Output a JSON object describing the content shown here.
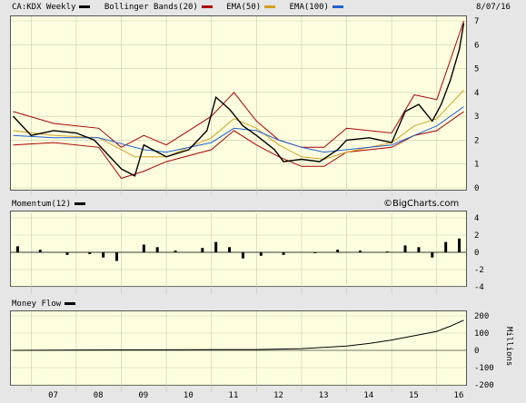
{
  "top_legend": {
    "symbol": "CA:KDX Weekly",
    "bbands": "Bollinger Bands(20)",
    "ema50": "EMA(50)",
    "ema100": "EMA(100)",
    "date": "8/07/16"
  },
  "momentum_label": "Momentum(12)",
  "moneyflow_label": "Money Flow",
  "watermark": "©BigCharts.com",
  "colors": {
    "price": "#000000",
    "bbands": "#aa0000",
    "ema50": "#d4a020",
    "ema100": "#2060d0",
    "bg": "#ffffe0"
  },
  "chart_data": [
    {
      "type": "line",
      "title": "CA:KDX Weekly",
      "x_ticks": [
        "07",
        "08",
        "09",
        "10",
        "11",
        "12",
        "13",
        "14",
        "15",
        "16"
      ],
      "y_ticks": [
        0,
        1,
        2,
        3,
        4,
        5,
        6,
        7
      ],
      "ylim": [
        0,
        7
      ],
      "series": [
        {
          "name": "CA:KDX Weekly",
          "x": [
            2006.6,
            2007.0,
            2007.5,
            2008.0,
            2008.4,
            2008.8,
            2009.0,
            2009.3,
            2009.5,
            2010.0,
            2010.5,
            2010.9,
            2011.1,
            2011.4,
            2011.7,
            2012.0,
            2012.4,
            2012.6,
            2013.0,
            2013.4,
            2013.8,
            2014.0,
            2014.5,
            2015.0,
            2015.3,
            2015.6,
            2015.9,
            2016.1,
            2016.3,
            2016.5,
            2016.6
          ],
          "values": [
            3.0,
            2.2,
            2.4,
            2.3,
            2.0,
            1.2,
            0.8,
            0.5,
            1.8,
            1.3,
            1.6,
            2.4,
            3.8,
            3.3,
            2.6,
            2.2,
            1.6,
            1.1,
            1.2,
            1.1,
            1.6,
            2.0,
            2.1,
            1.9,
            3.2,
            3.5,
            2.8,
            3.5,
            4.5,
            5.8,
            6.9
          ]
        },
        {
          "name": "Bollinger Bands(20)",
          "x": [
            2006.6,
            2007.5,
            2008.5,
            2009.0,
            2009.5,
            2010.0,
            2011.0,
            2011.5,
            2012.0,
            2012.5,
            2013.0,
            2013.5,
            2014.0,
            2015.0,
            2015.5,
            2016.0,
            2016.6
          ],
          "upper": [
            3.2,
            2.7,
            2.5,
            1.7,
            2.2,
            1.8,
            3.0,
            4.0,
            2.8,
            2.0,
            1.7,
            1.7,
            2.5,
            2.3,
            3.9,
            3.7,
            7.0
          ],
          "lower": [
            1.8,
            1.9,
            1.7,
            0.4,
            0.7,
            1.1,
            1.6,
            2.4,
            1.8,
            1.3,
            0.9,
            0.9,
            1.5,
            1.7,
            2.2,
            2.4,
            3.2
          ]
        },
        {
          "name": "EMA(50)",
          "x": [
            2006.6,
            2007.5,
            2008.5,
            2009.3,
            2010.0,
            2011.0,
            2011.5,
            2012.0,
            2012.5,
            2013.0,
            2013.5,
            2014.0,
            2015.0,
            2015.5,
            2016.0,
            2016.6
          ],
          "values": [
            2.4,
            2.2,
            2.1,
            1.3,
            1.3,
            2.1,
            2.9,
            2.5,
            1.8,
            1.3,
            1.2,
            1.5,
            1.9,
            2.6,
            2.9,
            4.1
          ]
        },
        {
          "name": "EMA(100)",
          "x": [
            2006.6,
            2007.5,
            2008.5,
            2009.5,
            2010.0,
            2011.0,
            2011.5,
            2012.0,
            2012.5,
            2013.0,
            2013.5,
            2014.0,
            2015.0,
            2015.5,
            2016.0,
            2016.6
          ],
          "values": [
            2.2,
            2.1,
            2.1,
            1.6,
            1.5,
            1.9,
            2.5,
            2.4,
            2.0,
            1.7,
            1.5,
            1.6,
            1.8,
            2.2,
            2.6,
            3.4
          ]
        }
      ]
    },
    {
      "type": "bar",
      "title": "Momentum(12)",
      "y_ticks": [
        4,
        2,
        0,
        -2,
        -4
      ],
      "ylim": [
        -4,
        4
      ],
      "x": [
        2006.7,
        2007.2,
        2007.8,
        2008.3,
        2008.6,
        2008.9,
        2009.5,
        2009.8,
        2010.2,
        2010.8,
        2011.1,
        2011.4,
        2011.7,
        2012.1,
        2012.6,
        2013.3,
        2013.8,
        2014.3,
        2014.9,
        2015.3,
        2015.6,
        2015.9,
        2016.2,
        2016.5
      ],
      "values": [
        0.7,
        0.3,
        -0.3,
        -0.2,
        -0.6,
        -1.0,
        0.9,
        0.6,
        0.2,
        0.5,
        1.2,
        0.6,
        -0.7,
        -0.4,
        -0.3,
        -0.1,
        0.3,
        0.2,
        0.1,
        0.8,
        0.6,
        -0.6,
        1.2,
        1.6
      ]
    },
    {
      "type": "line",
      "title": "Money Flow",
      "ylabel": "Millions",
      "y_ticks": [
        200,
        100,
        0,
        -100,
        -200
      ],
      "ylim": [
        -200,
        200
      ],
      "x": [
        2006.6,
        2008.0,
        2010.0,
        2012.0,
        2013.0,
        2014.0,
        2014.5,
        2015.0,
        2015.5,
        2016.0,
        2016.3,
        2016.6
      ],
      "values": [
        0,
        2,
        3,
        5,
        10,
        25,
        40,
        60,
        85,
        110,
        140,
        175
      ]
    }
  ]
}
